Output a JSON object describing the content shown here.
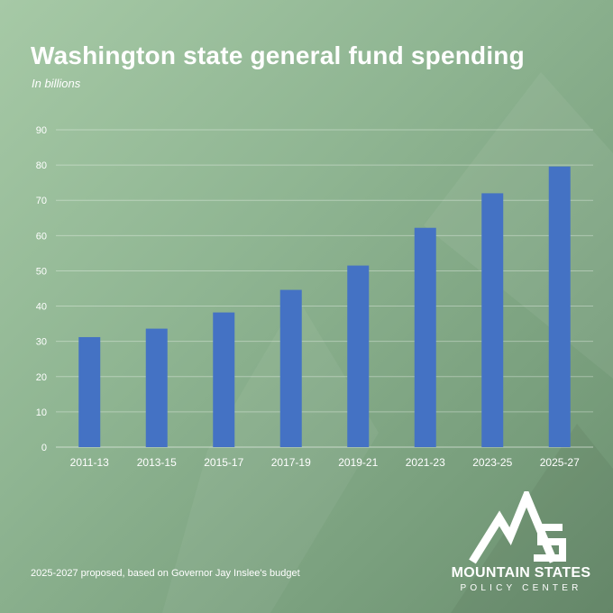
{
  "title": "Washington state general fund spending",
  "subtitle": "In billions",
  "footnote": "2025-2027 proposed, based on Governor Jay Inslee's budget",
  "logo": {
    "name": "MOUNTAIN STATES",
    "sub": "POLICY CENTER"
  },
  "colors": {
    "bar": "#4472c4",
    "text": "#ffffff",
    "grid": "#ffffff"
  },
  "chart_data": {
    "type": "bar",
    "title": "Washington state general fund spending",
    "subtitle": "In billions",
    "categories": [
      "2011-13",
      "2013-15",
      "2015-17",
      "2017-19",
      "2019-21",
      "2021-23",
      "2023-25",
      "2025-27"
    ],
    "values": [
      31.2,
      33.6,
      38.2,
      44.6,
      51.5,
      62.2,
      72.0,
      79.6
    ],
    "xlabel": "",
    "ylabel": "",
    "ylim": [
      0,
      90
    ],
    "yticks": [
      0,
      10,
      20,
      30,
      40,
      50,
      60,
      70,
      80,
      90
    ],
    "grid": true,
    "legend": "none"
  }
}
